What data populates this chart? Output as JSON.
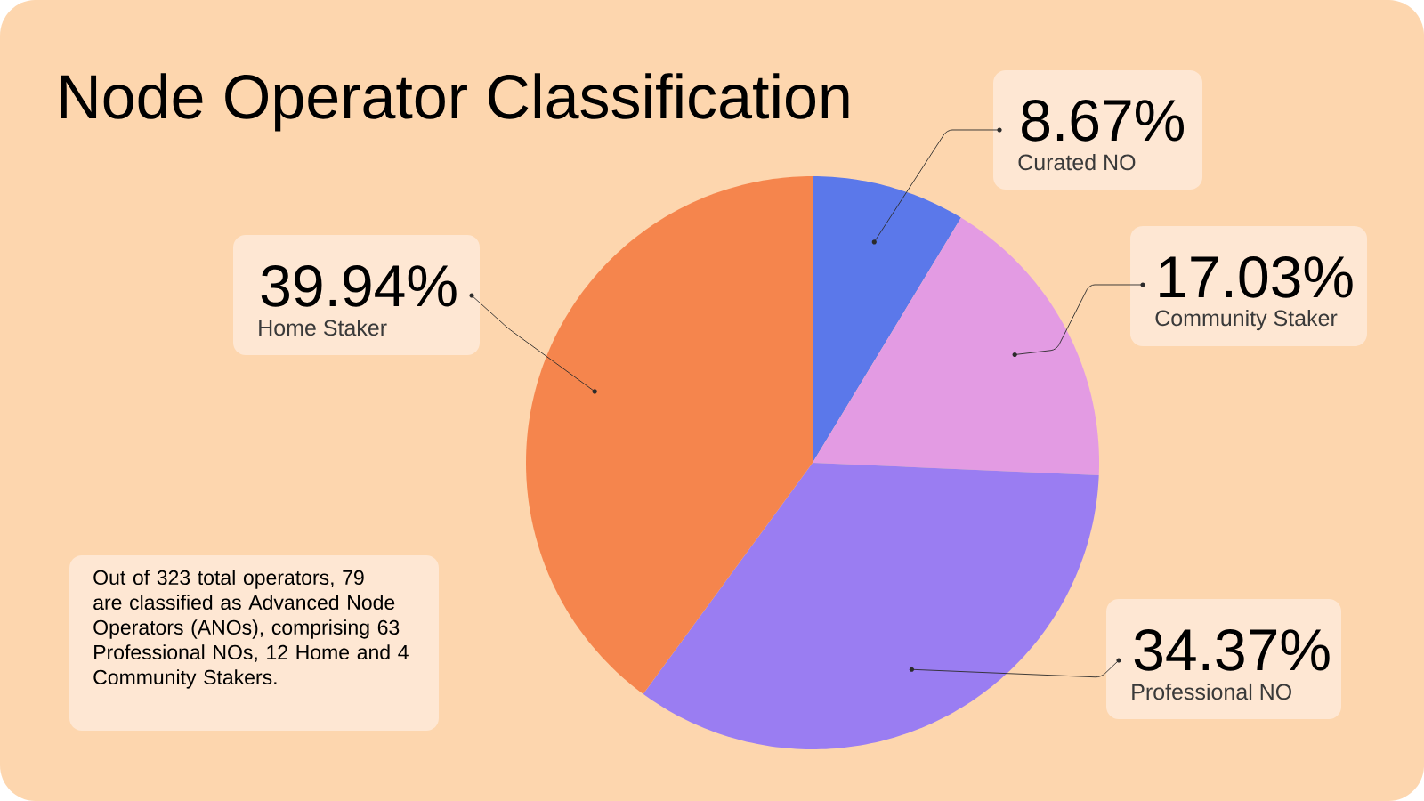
{
  "chart_data": {
    "type": "pie",
    "title": "Node Operator Classification",
    "categories": [
      "Curated NO",
      "Community Staker",
      "Professional NO",
      "Home Staker"
    ],
    "values": [
      8.67,
      17.03,
      34.37,
      39.94
    ],
    "value_labels": [
      "8.67%",
      "17.03%",
      "34.37%",
      "39.94%"
    ],
    "colors": [
      "#5b78ea",
      "#e39be3",
      "#9a7df2",
      "#f5854d"
    ],
    "annotations": [
      "Out of 323 total operators, 79 are classified as Advanced Node Operators (ANOs), comprising 63 Professional NOs, 12 Home and 4 Community Stakers."
    ]
  }
}
